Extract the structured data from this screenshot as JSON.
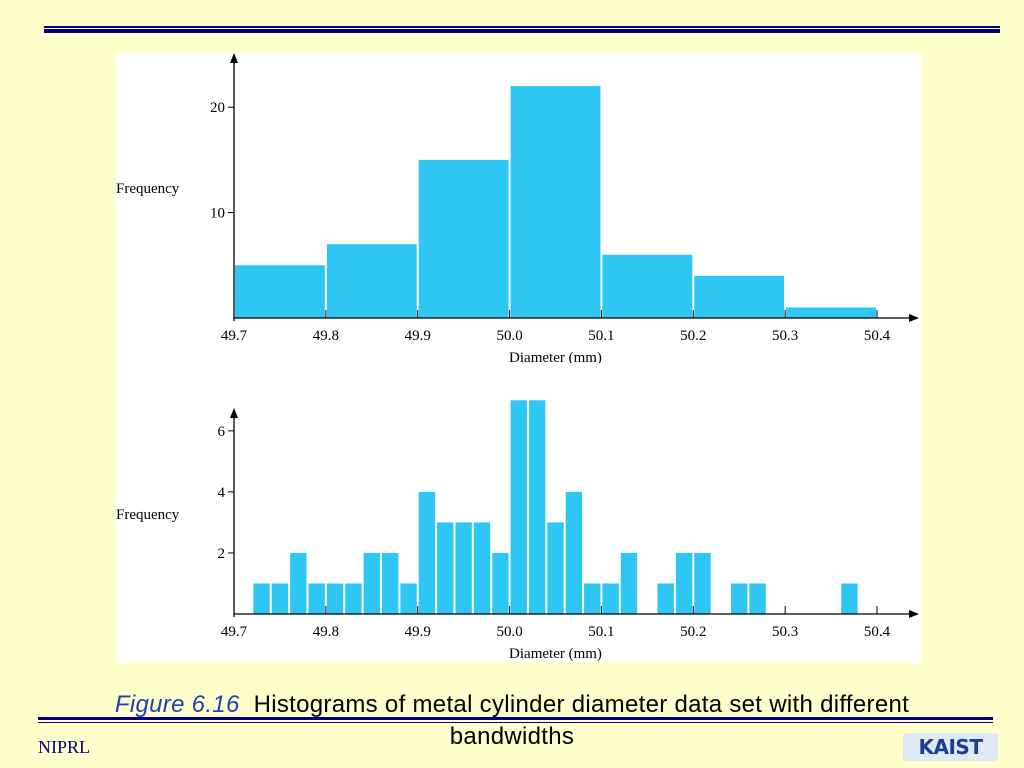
{
  "slide": {
    "figure_label": "Figure 6.16",
    "caption": "Histograms of metal cylinder diameter data set with different bandwidths",
    "footer_org": "NIPRL",
    "logo_text": "KAIST"
  },
  "colors": {
    "background": "#ffffcc",
    "rule": "#000080",
    "bar": "#2ec6f2",
    "figure_label": "#1f3fbf"
  },
  "chart_data": [
    {
      "type": "bar",
      "bin_width": 0.1,
      "x_bins": [
        49.7,
        49.8,
        49.9,
        50.0,
        50.1,
        50.2,
        50.3
      ],
      "values": [
        5,
        7,
        15,
        22,
        6,
        4,
        1
      ],
      "xticks": [
        "49.7",
        "49.8",
        "49.9",
        "50.0",
        "50.1",
        "50.2",
        "50.3",
        "50.4"
      ],
      "yticks": [
        "10",
        "20"
      ],
      "xlabel": "Diameter (mm)",
      "ylabel": "Frequency",
      "xlim": [
        49.7,
        50.4
      ],
      "ylim": [
        0,
        24
      ]
    },
    {
      "type": "bar",
      "bin_width": 0.02,
      "x_bins": [
        49.72,
        49.74,
        49.76,
        49.78,
        49.8,
        49.82,
        49.84,
        49.86,
        49.88,
        49.9,
        49.92,
        49.94,
        49.96,
        49.98,
        50.0,
        50.02,
        50.04,
        50.06,
        50.08,
        50.1,
        50.12,
        50.16,
        50.18,
        50.2,
        50.24,
        50.26,
        50.36
      ],
      "values": [
        1,
        1,
        2,
        1,
        1,
        1,
        2,
        2,
        1,
        4,
        3,
        3,
        3,
        2,
        7,
        7,
        3,
        4,
        1,
        1,
        2,
        1,
        2,
        2,
        1,
        1,
        1
      ],
      "xticks": [
        "49.7",
        "49.8",
        "49.9",
        "50.0",
        "50.1",
        "50.2",
        "50.3",
        "50.4"
      ],
      "yticks": [
        "2",
        "4",
        "6"
      ],
      "xlabel": "Diameter (mm)",
      "ylabel": "Frequency",
      "xlim": [
        49.7,
        50.4
      ],
      "ylim": [
        0,
        7.6
      ]
    }
  ]
}
